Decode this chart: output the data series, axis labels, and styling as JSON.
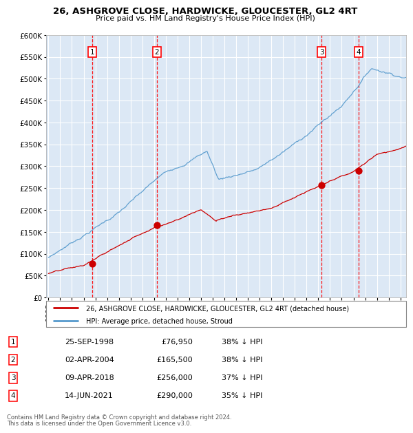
{
  "title1": "26, ASHGROVE CLOSE, HARDWICKE, GLOUCESTER, GL2 4RT",
  "title2": "Price paid vs. HM Land Registry's House Price Index (HPI)",
  "bg_color": "#ffffff",
  "plot_bg_color": "#dce8f5",
  "hpi_color": "#5599cc",
  "price_color": "#cc0000",
  "transactions": [
    {
      "num": 1,
      "date_label": "25-SEP-1998",
      "price_label": "£76,950",
      "pct_label": "38% ↓ HPI",
      "year": 1998.75
    },
    {
      "num": 2,
      "date_label": "02-APR-2004",
      "price_label": "£165,500",
      "pct_label": "38% ↓ HPI",
      "year": 2004.25
    },
    {
      "num": 3,
      "date_label": "09-APR-2018",
      "price_label": "£256,000",
      "pct_label": "37% ↓ HPI",
      "year": 2018.27
    },
    {
      "num": 4,
      "date_label": "14-JUN-2021",
      "price_label": "£290,000",
      "pct_label": "35% ↓ HPI",
      "year": 2021.45
    }
  ],
  "transaction_prices": [
    76950,
    165500,
    256000,
    290000
  ],
  "ylim": [
    0,
    600000
  ],
  "yticks": [
    0,
    50000,
    100000,
    150000,
    200000,
    250000,
    300000,
    350000,
    400000,
    450000,
    500000,
    550000,
    600000
  ],
  "xlim_start": 1994.8,
  "xlim_end": 2025.5,
  "legend_line1": "26, ASHGROVE CLOSE, HARDWICKE, GLOUCESTER, GL2 4RT (detached house)",
  "legend_line2": "HPI: Average price, detached house, Stroud",
  "footer1": "Contains HM Land Registry data © Crown copyright and database right 2024.",
  "footer2": "This data is licensed under the Open Government Licence v3.0."
}
